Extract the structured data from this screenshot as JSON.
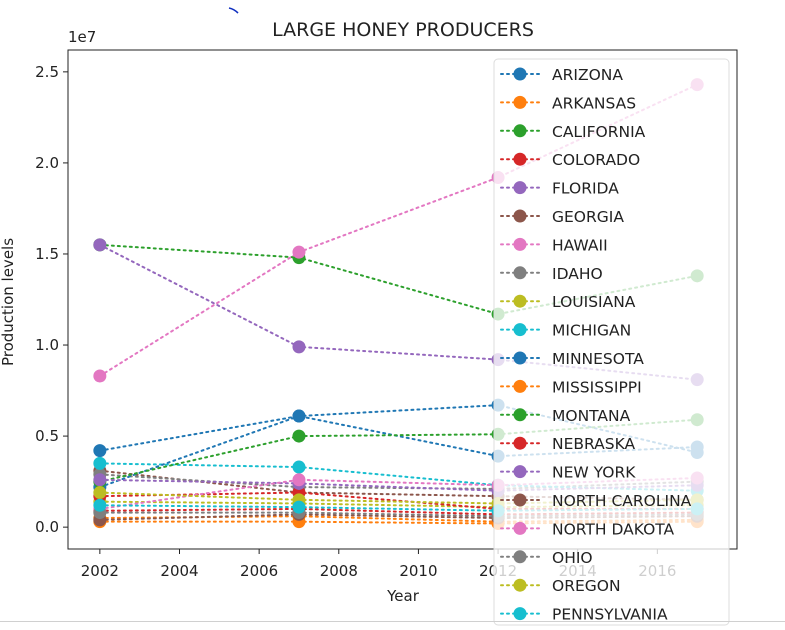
{
  "chart_data": {
    "type": "line",
    "title": "LARGE HONEY PRODUCERS",
    "xlabel": "Year",
    "ylabel": "Production levels",
    "y_offset_label": "1e7",
    "x_ticks": [
      2002,
      2004,
      2006,
      2008,
      2010,
      2012,
      2014,
      2016
    ],
    "y_ticks": [
      "0.0",
      "0.5",
      "1.0",
      "1.5",
      "2.0",
      "2.5"
    ],
    "xlim": [
      2001.2,
      2018.0
    ],
    "ylim": [
      -0.12,
      2.62
    ],
    "y_unit_multiplier": 10000000,
    "line_style": "dotted",
    "legend_position": "upper right",
    "x": [
      2002,
      2007,
      2012,
      2017
    ],
    "series": [
      {
        "name": "ARIZONA",
        "color": "#1f77b4",
        "values": [
          4200000,
          6100000,
          3900000,
          4400000
        ]
      },
      {
        "name": "ARKANSAS",
        "color": "#ff7f0e",
        "values": [
          500000,
          600000,
          300000,
          400000
        ]
      },
      {
        "name": "CALIFORNIA",
        "color": "#2ca02c",
        "values": [
          15500000,
          14800000,
          11700000,
          13800000
        ]
      },
      {
        "name": "COLORADO",
        "color": "#d62728",
        "values": [
          900000,
          1000000,
          700000,
          800000
        ]
      },
      {
        "name": "FLORIDA",
        "color": "#9467bd",
        "values": [
          15500000,
          9900000,
          9200000,
          8100000
        ]
      },
      {
        "name": "GEORGIA",
        "color": "#8c564b",
        "values": [
          3100000,
          1900000,
          1700000,
          1500000
        ]
      },
      {
        "name": "HAWAII",
        "color": "#e377c2",
        "values": [
          8300000,
          15100000,
          19200000,
          24300000
        ]
      },
      {
        "name": "IDAHO",
        "color": "#7f7f7f",
        "values": [
          2900000,
          2200000,
          2100000,
          2500000
        ]
      },
      {
        "name": "LOUISIANA",
        "color": "#bcbd22",
        "values": [
          1400000,
          1300000,
          1100000,
          1200000
        ]
      },
      {
        "name": "MICHIGAN",
        "color": "#17becf",
        "values": [
          3500000,
          3300000,
          2300000,
          2000000
        ]
      },
      {
        "name": "MINNESOTA",
        "color": "#1f77b4",
        "values": [
          2200000,
          6100000,
          6700000,
          4100000
        ]
      },
      {
        "name": "MISSISSIPPI",
        "color": "#ff7f0e",
        "values": [
          300000,
          300000,
          200000,
          300000
        ]
      },
      {
        "name": "MONTANA",
        "color": "#2ca02c",
        "values": [
          2500000,
          5000000,
          5100000,
          5900000
        ]
      },
      {
        "name": "NEBRASKA",
        "color": "#d62728",
        "values": [
          1700000,
          1900000,
          1000000,
          1000000
        ]
      },
      {
        "name": "NEW YORK",
        "color": "#9467bd",
        "values": [
          2600000,
          2400000,
          2000000,
          2300000
        ]
      },
      {
        "name": "NORTH CAROLINA",
        "color": "#8c564b",
        "values": [
          400000,
          700000,
          500000,
          600000
        ]
      },
      {
        "name": "NORTH DAKOTA",
        "color": "#e377c2",
        "values": [
          1000000,
          2600000,
          2300000,
          2700000
        ]
      },
      {
        "name": "OHIO",
        "color": "#7f7f7f",
        "values": [
          800000,
          800000,
          600000,
          700000
        ]
      },
      {
        "name": "OREGON",
        "color": "#bcbd22",
        "values": [
          1900000,
          1500000,
          1300000,
          1500000
        ]
      },
      {
        "name": "PENNSYLVANIA",
        "color": "#17becf",
        "values": [
          1200000,
          1100000,
          900000,
          1000000
        ]
      }
    ]
  }
}
